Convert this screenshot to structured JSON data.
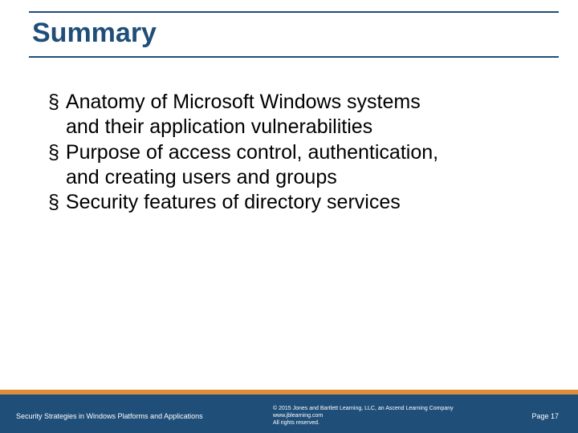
{
  "colors": {
    "title_color": "#1f4e79",
    "rule_color": "#1f4e79",
    "text_color": "#000000",
    "footer_bg": "#1f4e79",
    "footer_accent": "#e08e3a",
    "footer_text": "#ffffff"
  },
  "typography": {
    "title_fontsize": 34,
    "body_fontsize": 25,
    "footer_left_fontsize": 9,
    "footer_center_fontsize": 7,
    "footer_right_fontsize": 9,
    "bullet_glyph": "§"
  },
  "title": "Summary",
  "bullets": [
    {
      "lines": [
        "Anatomy of Microsoft Windows systems",
        "and their application vulnerabilities"
      ]
    },
    {
      "lines": [
        "Purpose of access control, authentication,",
        "and creating users and groups"
      ]
    },
    {
      "lines": [
        "Security features of directory services"
      ]
    }
  ],
  "footer": {
    "left": "Security Strategies in Windows Platforms and Applications",
    "center_lines": [
      "© 2015 Jones and Bartlett Learning, LLC, an Ascend Learning Company",
      "www.jblearning.com",
      "All rights reserved."
    ],
    "right": "Page 17"
  }
}
